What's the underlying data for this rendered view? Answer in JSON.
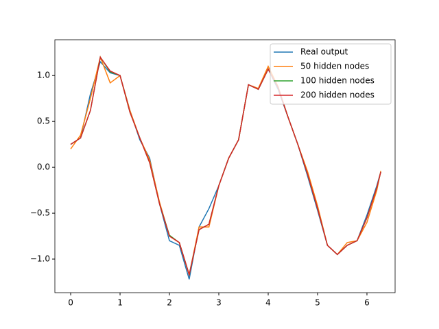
{
  "chart_data": {
    "type": "line",
    "x": [
      0,
      0.2,
      0.4,
      0.6,
      0.8,
      1.0,
      1.2,
      1.4,
      1.6,
      1.8,
      2.0,
      2.2,
      2.4,
      2.6,
      2.8,
      3.0,
      3.2,
      3.4,
      3.6,
      3.8,
      4.0,
      4.2,
      4.4,
      4.6,
      4.8,
      5.0,
      5.2,
      5.4,
      5.6,
      5.8,
      6.0,
      6.2,
      6.28
    ],
    "series": [
      {
        "name": "Real output",
        "color": "#1f77b4",
        "values": [
          0.25,
          0.32,
          0.8,
          1.15,
          1.03,
          1.0,
          0.62,
          0.3,
          0.1,
          -0.4,
          -0.8,
          -0.85,
          -1.22,
          -0.65,
          -0.45,
          -0.2,
          0.1,
          0.3,
          0.9,
          0.85,
          1.07,
          0.85,
          0.55,
          0.25,
          -0.1,
          -0.47,
          -0.85,
          -0.95,
          -0.85,
          -0.8,
          -0.52,
          -0.2,
          -0.05
        ]
      },
      {
        "name": "50 hidden nodes",
        "color": "#ff7f0e",
        "values": [
          0.2,
          0.35,
          0.75,
          1.2,
          0.92,
          1.0,
          0.62,
          0.32,
          0.08,
          -0.38,
          -0.75,
          -0.82,
          -1.17,
          -0.65,
          -0.65,
          -0.2,
          0.1,
          0.3,
          0.9,
          0.86,
          1.1,
          0.88,
          0.55,
          0.25,
          -0.05,
          -0.42,
          -0.85,
          -0.95,
          -0.82,
          -0.8,
          -0.6,
          -0.25,
          -0.04
        ]
      },
      {
        "name": "100 hidden nodes",
        "color": "#2ca02c",
        "values": [
          0.25,
          0.32,
          0.62,
          1.2,
          1.04,
          1.0,
          0.6,
          0.32,
          0.05,
          -0.4,
          -0.74,
          -0.82,
          -1.17,
          -0.68,
          -0.62,
          -0.2,
          0.1,
          0.3,
          0.9,
          0.85,
          1.07,
          0.87,
          0.55,
          0.25,
          -0.08,
          -0.45,
          -0.85,
          -0.95,
          -0.85,
          -0.8,
          -0.55,
          -0.22,
          -0.05
        ]
      },
      {
        "name": "200 hidden nodes",
        "color": "#d62728",
        "values": [
          0.25,
          0.32,
          0.62,
          1.2,
          1.05,
          1.0,
          0.6,
          0.32,
          0.05,
          -0.4,
          -0.75,
          -0.82,
          -1.17,
          -0.68,
          -0.62,
          -0.2,
          0.1,
          0.3,
          0.9,
          0.85,
          1.07,
          0.87,
          0.55,
          0.25,
          -0.08,
          -0.45,
          -0.85,
          -0.95,
          -0.85,
          -0.8,
          -0.55,
          -0.22,
          -0.05
        ]
      }
    ],
    "xlim": [
      -0.32,
      6.57
    ],
    "ylim": [
      -1.366,
      1.39
    ],
    "xticks": [
      0,
      1,
      2,
      3,
      4,
      5,
      6
    ],
    "yticks": [
      {
        "value": -1.0,
        "label": "−1.0"
      },
      {
        "value": -0.5,
        "label": "−0.5"
      },
      {
        "value": 0.0,
        "label": "0.0"
      },
      0.5,
      {
        "value": 1.0,
        "label": "1.0"
      }
    ],
    "legend": "upper right"
  }
}
